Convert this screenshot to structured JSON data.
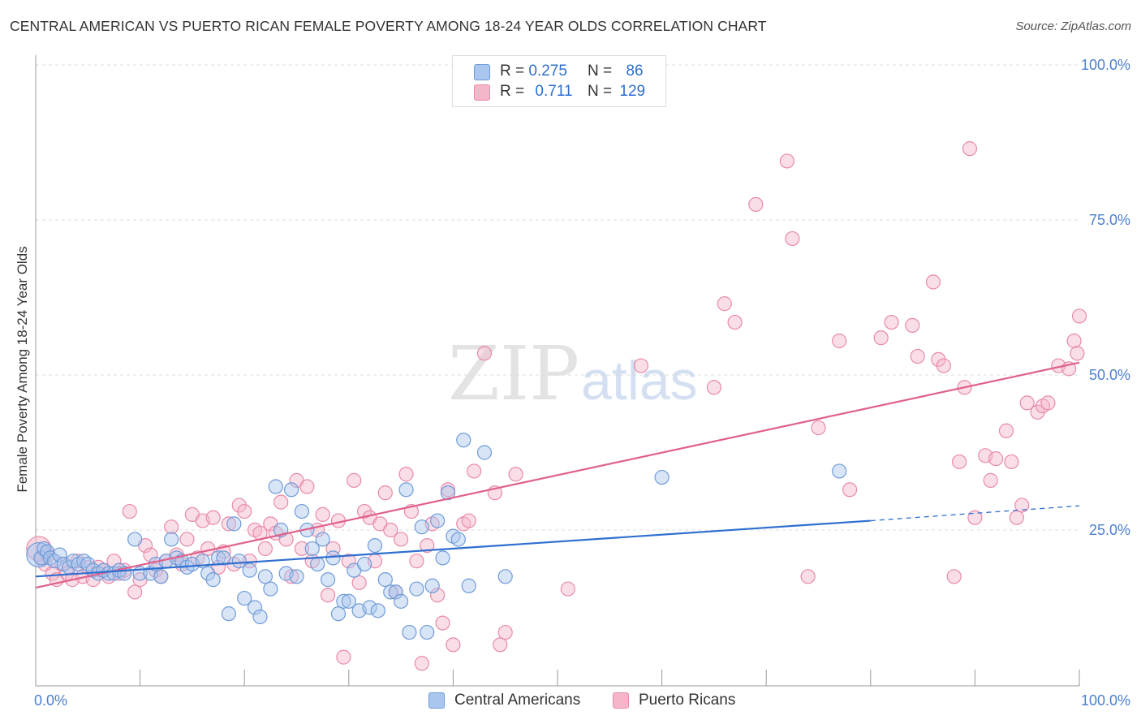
{
  "title": "CENTRAL AMERICAN VS PUERTO RICAN FEMALE POVERTY AMONG 18-24 YEAR OLDS CORRELATION CHART",
  "source": "Source: ZipAtlas.com",
  "watermark": {
    "zip": "ZIP",
    "atlas": "atlas"
  },
  "legend_top": [
    {
      "r_label": "R =",
      "r_value": "0.275",
      "n_label": "N =",
      "n_value": "86"
    },
    {
      "r_label": "R =",
      "r_value": "0.711",
      "n_label": "N =",
      "n_value": "129"
    }
  ],
  "legend_bottom": [
    "Central Americans",
    "Puerto Ricans"
  ],
  "colors": {
    "blue_fill": "#a9c6ee",
    "blue_stroke": "#6f9bd8",
    "blue_line": "#2f6fd0",
    "pink_fill": "#f5b6c9",
    "pink_stroke": "#e88aa8",
    "pink_line": "#e0608a",
    "axis_text": "#4a7fd0",
    "grid": "#dddddd"
  },
  "chart_data": {
    "type": "scatter",
    "title": "CENTRAL AMERICAN VS PUERTO RICAN FEMALE POVERTY AMONG 18-24 YEAR OLDS CORRELATION CHART",
    "xlabel": "",
    "ylabel": "Female Poverty Among 18-24 Year Olds",
    "xlim": [
      0,
      100
    ],
    "ylim": [
      0,
      100
    ],
    "x_tick_labels": [
      "0.0%",
      "100.0%"
    ],
    "y_tick_labels": [
      "25.0%",
      "50.0%",
      "75.0%",
      "100.0%"
    ],
    "y_tick_values": [
      25,
      50,
      75,
      100
    ],
    "grid": true,
    "series": [
      {
        "name": "Central Americans",
        "R": 0.275,
        "N": 86,
        "trend": {
          "x": [
            0,
            80
          ],
          "y": [
            17.5,
            26.5
          ],
          "dashed_extension_to": [
            100,
            28.9
          ]
        },
        "points": [
          [
            0.3,
            21
          ],
          [
            0.5,
            20.5
          ],
          [
            0.8,
            22
          ],
          [
            1.1,
            21.5
          ],
          [
            1.4,
            20.5
          ],
          [
            1.8,
            20
          ],
          [
            2.3,
            21
          ],
          [
            2.7,
            19.5
          ],
          [
            3.2,
            19
          ],
          [
            3.6,
            20
          ],
          [
            4.1,
            19.5
          ],
          [
            4.6,
            20
          ],
          [
            5.0,
            19.5
          ],
          [
            5.5,
            18.5
          ],
          [
            6.0,
            18
          ],
          [
            6.5,
            18.5
          ],
          [
            7.0,
            18
          ],
          [
            7.5,
            18
          ],
          [
            8.0,
            18.5
          ],
          [
            8.5,
            18
          ],
          [
            9.5,
            23.5
          ],
          [
            10,
            18
          ],
          [
            11,
            18
          ],
          [
            11.5,
            19.5
          ],
          [
            12,
            17.5
          ],
          [
            12.5,
            20
          ],
          [
            13,
            23.5
          ],
          [
            13.5,
            20.5
          ],
          [
            14,
            20
          ],
          [
            14.5,
            19
          ],
          [
            15,
            19.5
          ],
          [
            16,
            20
          ],
          [
            16.5,
            18
          ],
          [
            17,
            17
          ],
          [
            17.5,
            20.5
          ],
          [
            18,
            20.5
          ],
          [
            18.5,
            11.5
          ],
          [
            19,
            26
          ],
          [
            19.5,
            20
          ],
          [
            20,
            14
          ],
          [
            20.5,
            18.5
          ],
          [
            21,
            12.5
          ],
          [
            21.5,
            11
          ],
          [
            22,
            17.5
          ],
          [
            22.5,
            15.5
          ],
          [
            23,
            32
          ],
          [
            23.5,
            25
          ],
          [
            24,
            18
          ],
          [
            24.5,
            31.5
          ],
          [
            25,
            17.5
          ],
          [
            25.5,
            28
          ],
          [
            26,
            25
          ],
          [
            26.5,
            22
          ],
          [
            27,
            19.5
          ],
          [
            27.5,
            23.5
          ],
          [
            28,
            17
          ],
          [
            28.5,
            20.5
          ],
          [
            29,
            11.5
          ],
          [
            29.5,
            13.5
          ],
          [
            30,
            13.5
          ],
          [
            30.5,
            18.5
          ],
          [
            31,
            12
          ],
          [
            31.5,
            19.5
          ],
          [
            32,
            12.5
          ],
          [
            32.5,
            22.5
          ],
          [
            32.8,
            12
          ],
          [
            33.5,
            17
          ],
          [
            34,
            15
          ],
          [
            34.5,
            15
          ],
          [
            35,
            13.5
          ],
          [
            35.5,
            31.5
          ],
          [
            35.8,
            8.5
          ],
          [
            36.5,
            15.5
          ],
          [
            37,
            25.5
          ],
          [
            37.5,
            8.5
          ],
          [
            38,
            16
          ],
          [
            38.5,
            26.5
          ],
          [
            39,
            20.5
          ],
          [
            39.5,
            31
          ],
          [
            40,
            24
          ],
          [
            40.5,
            23.5
          ],
          [
            41,
            39.5
          ],
          [
            41.5,
            16
          ],
          [
            43,
            37.5
          ],
          [
            45,
            17.5
          ],
          [
            60,
            33.5
          ],
          [
            77,
            34.5
          ]
        ]
      },
      {
        "name": "Puerto Ricans",
        "R": 0.711,
        "N": 129,
        "trend": {
          "x": [
            0,
            100
          ],
          "y": [
            15.7,
            52
          ]
        },
        "points": [
          [
            0.3,
            22
          ],
          [
            0.6,
            20.5
          ],
          [
            0.9,
            19.5
          ],
          [
            1.2,
            21
          ],
          [
            1.6,
            18
          ],
          [
            2,
            17
          ],
          [
            2.5,
            19.5
          ],
          [
            3,
            18
          ],
          [
            3.5,
            17
          ],
          [
            4,
            20
          ],
          [
            4.5,
            17.5
          ],
          [
            5,
            19
          ],
          [
            5.5,
            17
          ],
          [
            6,
            19
          ],
          [
            6.5,
            18.5
          ],
          [
            7,
            17.5
          ],
          [
            7.5,
            20
          ],
          [
            8,
            18
          ],
          [
            8.5,
            18.5
          ],
          [
            9,
            28
          ],
          [
            9.5,
            15
          ],
          [
            10,
            17
          ],
          [
            10.5,
            22.5
          ],
          [
            11,
            21
          ],
          [
            11.5,
            18.5
          ],
          [
            12,
            17.5
          ],
          [
            12.5,
            20
          ],
          [
            13,
            25.5
          ],
          [
            13.5,
            21
          ],
          [
            14,
            19.5
          ],
          [
            14.5,
            23.5
          ],
          [
            15,
            27.5
          ],
          [
            15.5,
            20.5
          ],
          [
            16,
            26.5
          ],
          [
            16.5,
            22
          ],
          [
            17,
            27
          ],
          [
            17.5,
            19
          ],
          [
            18,
            21.5
          ],
          [
            18.5,
            26
          ],
          [
            19,
            19.5
          ],
          [
            19.5,
            29
          ],
          [
            20,
            28
          ],
          [
            20.5,
            20
          ],
          [
            21,
            25
          ],
          [
            21.5,
            24.5
          ],
          [
            22,
            22
          ],
          [
            22.5,
            26
          ],
          [
            23,
            24.5
          ],
          [
            23.5,
            29.5
          ],
          [
            24,
            23.5
          ],
          [
            24.5,
            17.5
          ],
          [
            25,
            33
          ],
          [
            25.5,
            22
          ],
          [
            26,
            32
          ],
          [
            26.5,
            20
          ],
          [
            27,
            25
          ],
          [
            27.5,
            27.5
          ],
          [
            28,
            14.5
          ],
          [
            28.5,
            22
          ],
          [
            29,
            26.5
          ],
          [
            29.5,
            4.5
          ],
          [
            30,
            20
          ],
          [
            30.5,
            33
          ],
          [
            31,
            16.5
          ],
          [
            31.5,
            28
          ],
          [
            32,
            27
          ],
          [
            32.5,
            20
          ],
          [
            33,
            26
          ],
          [
            33.5,
            31
          ],
          [
            34,
            25
          ],
          [
            34.5,
            15
          ],
          [
            35,
            23.5
          ],
          [
            35.5,
            34
          ],
          [
            36,
            28
          ],
          [
            36.5,
            20
          ],
          [
            37,
            3.5
          ],
          [
            37.5,
            22.5
          ],
          [
            38,
            26
          ],
          [
            38.5,
            14.5
          ],
          [
            39,
            10
          ],
          [
            39.5,
            31.5
          ],
          [
            40,
            6.5
          ],
          [
            41,
            26
          ],
          [
            41.5,
            26.5
          ],
          [
            42,
            34.5
          ],
          [
            43,
            53.5
          ],
          [
            44,
            31
          ],
          [
            44.5,
            6.5
          ],
          [
            45,
            8.5
          ],
          [
            46,
            34
          ],
          [
            51,
            15.5
          ],
          [
            58,
            51.5
          ],
          [
            65,
            48
          ],
          [
            66,
            61.5
          ],
          [
            67,
            58.5
          ],
          [
            69,
            77.5
          ],
          [
            72,
            84.5
          ],
          [
            72.5,
            72
          ],
          [
            74,
            17.5
          ],
          [
            75,
            41.5
          ],
          [
            77,
            55.5
          ],
          [
            78,
            31.5
          ],
          [
            81,
            56
          ],
          [
            82,
            58.5
          ],
          [
            84,
            58
          ],
          [
            84.5,
            53
          ],
          [
            86,
            65
          ],
          [
            86.5,
            52.5
          ],
          [
            87,
            51.5
          ],
          [
            88,
            17.5
          ],
          [
            88.5,
            36
          ],
          [
            89,
            48
          ],
          [
            89.5,
            86.5
          ],
          [
            90,
            27
          ],
          [
            91,
            37
          ],
          [
            91.5,
            33
          ],
          [
            92,
            36.5
          ],
          [
            93,
            41
          ],
          [
            93.5,
            36
          ],
          [
            94,
            27
          ],
          [
            94.5,
            29
          ],
          [
            95,
            45.5
          ],
          [
            96,
            44
          ],
          [
            96.5,
            45
          ],
          [
            97,
            45.5
          ],
          [
            98,
            51.5
          ],
          [
            99,
            51
          ],
          [
            99.5,
            55.5
          ],
          [
            99.8,
            53.5
          ],
          [
            100,
            59.5
          ]
        ]
      }
    ]
  }
}
